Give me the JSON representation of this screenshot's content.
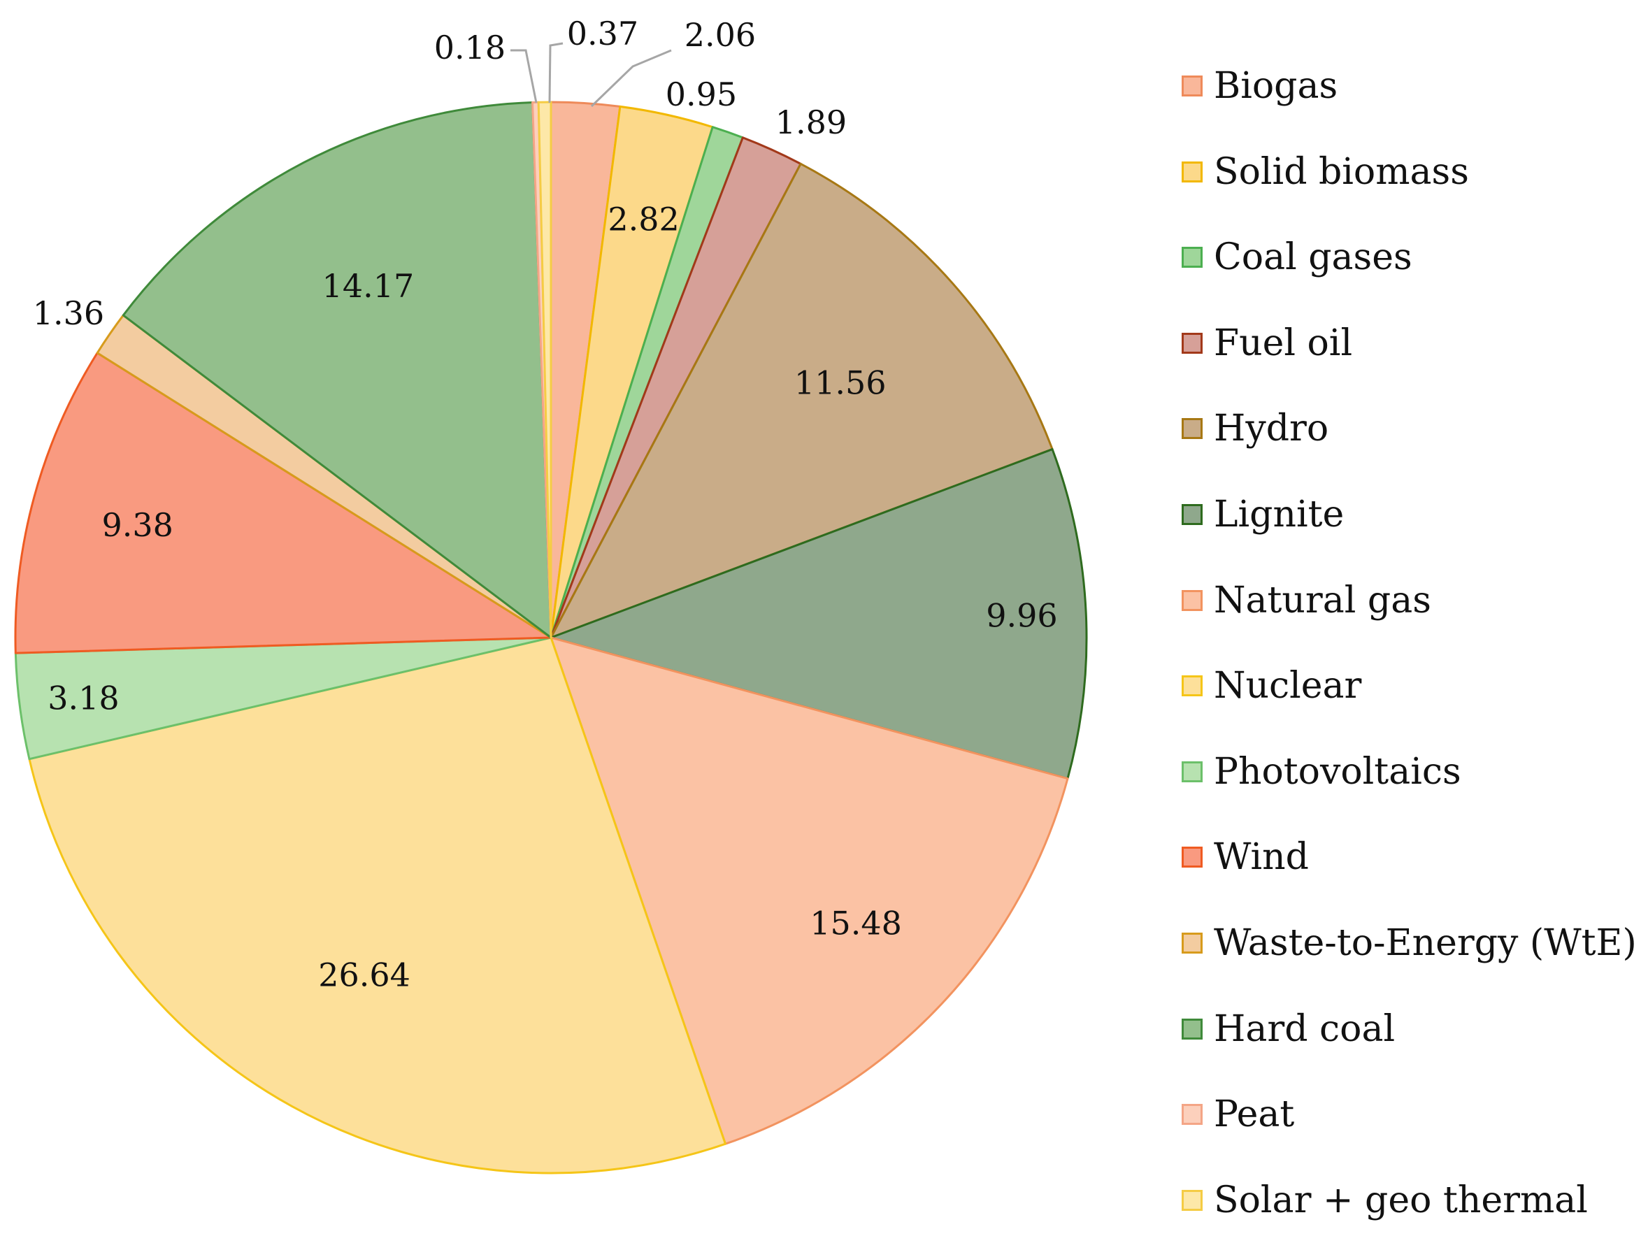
{
  "chart_data": {
    "type": "pie",
    "title": "",
    "start_angle_deg": 0,
    "direction": "clockwise",
    "slices": [
      {
        "label": "Biogas",
        "value": 2.06,
        "fill": "#f9b79a",
        "stroke": "#ee8a5a"
      },
      {
        "label": "Solid biomass",
        "value": 2.82,
        "fill": "#fcd98a",
        "stroke": "#f2b800"
      },
      {
        "label": "Coal gases",
        "value": 0.95,
        "fill": "#9fd69a",
        "stroke": "#4caf50"
      },
      {
        "label": "Fuel oil",
        "value": 1.89,
        "fill": "#d6a098",
        "stroke": "#a2391a"
      },
      {
        "label": "Hydro",
        "value": 11.56,
        "fill": "#c9ac88",
        "stroke": "#a77814"
      },
      {
        "label": "Lignite",
        "value": 9.96,
        "fill": "#8fa88c",
        "stroke": "#2e6b1e"
      },
      {
        "label": "Natural gas",
        "value": 15.48,
        "fill": "#fbc2a4",
        "stroke": "#f2935f"
      },
      {
        "label": "Nuclear",
        "value": 26.64,
        "fill": "#fde09a",
        "stroke": "#f5c518"
      },
      {
        "label": "Photovoltaics",
        "value": 3.18,
        "fill": "#b7e2b0",
        "stroke": "#6cc06a"
      },
      {
        "label": "Wind",
        "value": 9.38,
        "fill": "#f99a80",
        "stroke": "#ef5b22"
      },
      {
        "label": "Waste-to-Energy (WtE)",
        "value": 1.36,
        "fill": "#f3cca0",
        "stroke": "#d79b1c"
      },
      {
        "label": "Hard coal",
        "value": 14.17,
        "fill": "#93bf8c",
        "stroke": "#3f8a3a"
      },
      {
        "label": "Peat",
        "value": 0.18,
        "fill": "#fcd0bc",
        "stroke": "#f4a586"
      },
      {
        "label": "Solar + geo thermal",
        "value": 0.37,
        "fill": "#fde8a8",
        "stroke": "#f5cc44"
      }
    ],
    "data_labels": [
      "2.06",
      "2.82",
      "0.95",
      "1.89",
      "11.56",
      "9.96",
      "15.48",
      "26.64",
      "3.18",
      "9.38",
      "1.36",
      "14.17",
      "0.18",
      "0.37"
    ],
    "legend_position": "right",
    "grid": false
  }
}
